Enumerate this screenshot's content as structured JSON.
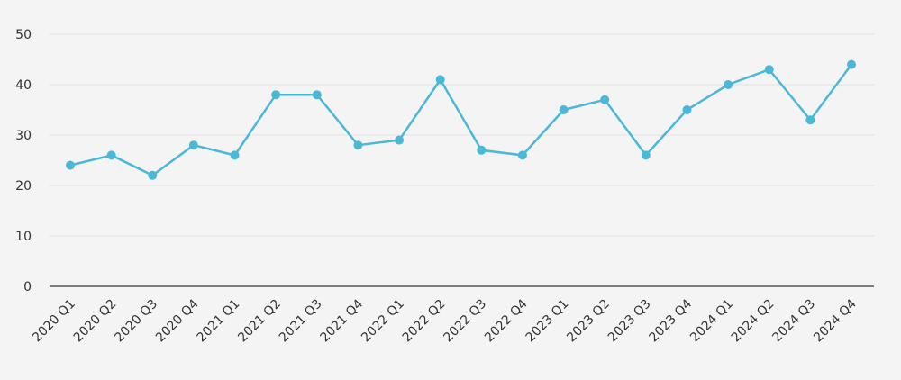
{
  "chart_data": {
    "type": "line",
    "title": "",
    "xlabel": "",
    "ylabel": "",
    "categories": [
      "2020 Q1",
      "2020 Q2",
      "2020 Q3",
      "2020 Q4",
      "2021 Q1",
      "2021 Q2",
      "2021 Q3",
      "2021 Q4",
      "2022 Q1",
      "2022 Q2",
      "2022 Q3",
      "2022 Q4",
      "2023 Q1",
      "2023 Q2",
      "2023 Q3",
      "2023 Q4",
      "2024 Q1",
      "2024 Q2",
      "2024 Q3",
      "2024 Q4"
    ],
    "values": [
      24,
      26,
      22,
      28,
      26,
      38,
      38,
      28,
      29,
      41,
      27,
      26,
      35,
      37,
      26,
      35,
      40,
      43,
      33,
      44
    ],
    "ylim": [
      0,
      50
    ],
    "yticks": [
      0,
      10,
      20,
      30,
      40,
      50
    ],
    "grid": true,
    "color": "#4ab8d6"
  }
}
